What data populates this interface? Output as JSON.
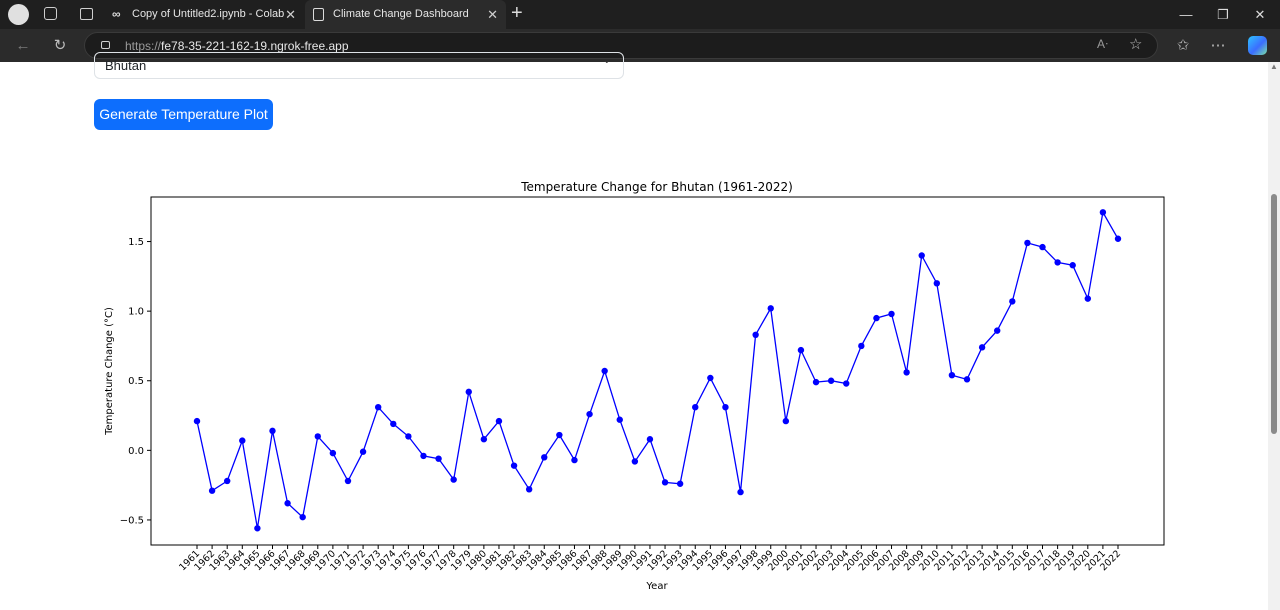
{
  "browser": {
    "tabs": [
      {
        "title": "Copy of Untitled2.ipynb - Colab",
        "active": false,
        "icon": "colab-icon"
      },
      {
        "title": "Climate Change Dashboard",
        "active": true,
        "icon": "document-icon"
      }
    ],
    "url_scheme": "https://",
    "url_host": "fe78-35-221-162-19.ngrok-free.app"
  },
  "form": {
    "country_selected": "Bhutan",
    "generate_button_label": "Generate Temperature Plot"
  },
  "chart_data": {
    "type": "line",
    "title": "Temperature Change for Bhutan (1961-2022)",
    "xlabel": "Year",
    "ylabel": "Temperature Change (°C)",
    "ylim": [
      -0.68,
      1.82
    ],
    "yticks": [
      -0.5,
      0.0,
      0.5,
      1.0,
      1.5
    ],
    "yticklabels": [
      "−0.5",
      "0.0",
      "0.5",
      "1.0",
      "1.5"
    ],
    "grid": false,
    "color": "#0000ff",
    "marker": "circle",
    "x": [
      1961,
      1962,
      1963,
      1964,
      1965,
      1966,
      1967,
      1968,
      1969,
      1970,
      1971,
      1972,
      1973,
      1974,
      1975,
      1976,
      1977,
      1978,
      1979,
      1980,
      1981,
      1982,
      1983,
      1984,
      1985,
      1986,
      1987,
      1988,
      1989,
      1990,
      1991,
      1992,
      1993,
      1994,
      1995,
      1996,
      1997,
      1998,
      1999,
      2000,
      2001,
      2002,
      2003,
      2004,
      2005,
      2006,
      2007,
      2008,
      2009,
      2010,
      2011,
      2012,
      2013,
      2014,
      2015,
      2016,
      2017,
      2018,
      2019,
      2020,
      2021,
      2022
    ],
    "values": [
      0.21,
      -0.29,
      -0.22,
      0.07,
      -0.56,
      0.14,
      -0.38,
      -0.48,
      0.1,
      -0.02,
      -0.22,
      -0.01,
      0.31,
      0.19,
      0.1,
      -0.04,
      -0.06,
      -0.21,
      0.42,
      0.08,
      0.21,
      -0.11,
      -0.28,
      -0.05,
      0.11,
      -0.07,
      0.26,
      0.57,
      0.22,
      -0.08,
      0.08,
      -0.23,
      -0.24,
      0.31,
      0.52,
      0.31,
      -0.3,
      0.83,
      1.02,
      0.21,
      0.72,
      0.49,
      0.5,
      0.48,
      0.75,
      0.95,
      0.98,
      0.56,
      1.4,
      1.2,
      0.54,
      0.51,
      0.74,
      0.86,
      1.07,
      1.49,
      1.46,
      1.35,
      1.33,
      1.09,
      1.71,
      1.52
    ]
  }
}
